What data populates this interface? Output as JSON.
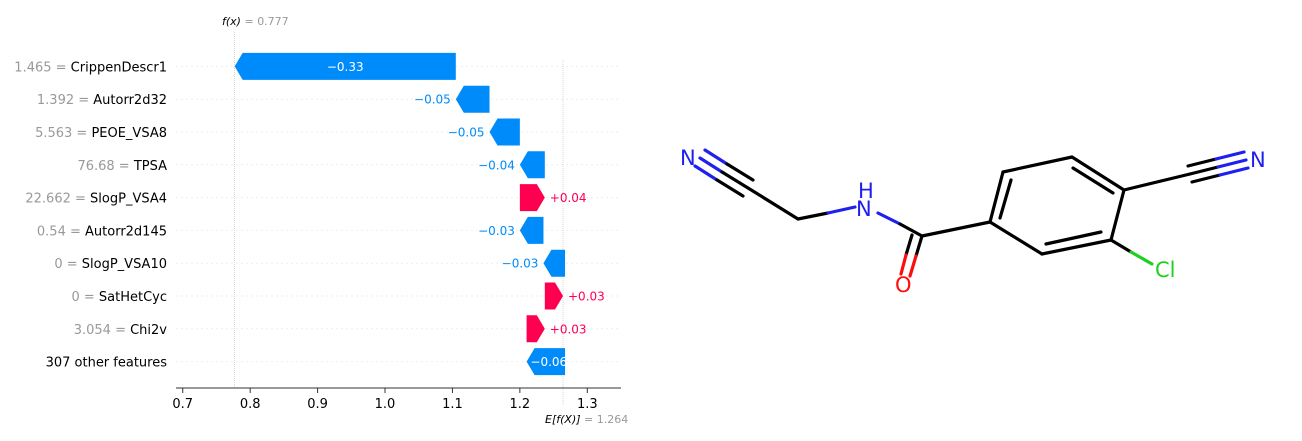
{
  "chart_data": {
    "type": "waterfall",
    "fx_label": "f(x)",
    "fx_value": "0.777",
    "ex_label": "E[f(X)]",
    "ex_value": "1.264",
    "base_value": 1.264,
    "final_value": 0.777,
    "xlim": [
      0.69,
      1.35
    ],
    "xticks": [
      0.7,
      0.8,
      0.9,
      1.0,
      1.1,
      1.2,
      1.3
    ],
    "xtick_labels": [
      "0.7",
      "0.8",
      "0.9",
      "1.0",
      "1.1",
      "1.2",
      "1.3"
    ],
    "colors": {
      "negative": "#008bfb",
      "positive": "#ff0051"
    },
    "features": [
      {
        "value": "1.465",
        "name": "CrippenDescr1",
        "left": 0.777,
        "right": 1.105,
        "shap": -0.33,
        "label": "−0.33"
      },
      {
        "value": "1.392",
        "name": "Autorr2d32",
        "left": 1.105,
        "right": 1.155,
        "shap": -0.05,
        "label": "−0.05"
      },
      {
        "value": "5.563",
        "name": "PEOE_VSA8",
        "left": 1.155,
        "right": 1.2,
        "shap": -0.05,
        "label": "−0.05"
      },
      {
        "value": "76.68",
        "name": "TPSA",
        "left": 1.2,
        "right": 1.237,
        "shap": -0.04,
        "label": "−0.04"
      },
      {
        "value": "22.662",
        "name": "SlogP_VSA4",
        "left": 1.2,
        "right": 1.237,
        "shap": 0.04,
        "label": "+0.04"
      },
      {
        "value": "0.54",
        "name": "Autorr2d145",
        "left": 1.2,
        "right": 1.235,
        "shap": -0.03,
        "label": "−0.03"
      },
      {
        "value": "0",
        "name": "SlogP_VSA10",
        "left": 1.235,
        "right": 1.267,
        "shap": -0.03,
        "label": "−0.03"
      },
      {
        "value": "0",
        "name": "SatHetCyc",
        "left": 1.237,
        "right": 1.264,
        "shap": 0.03,
        "label": "+0.03"
      },
      {
        "value": "3.054",
        "name": "Chi2v",
        "left": 1.21,
        "right": 1.237,
        "shap": 0.03,
        "label": "+0.03"
      },
      {
        "value": "",
        "name": "307 other features",
        "left": 1.21,
        "right": 1.267,
        "shap": -0.06,
        "label": "−0.06"
      }
    ]
  },
  "molecule": {
    "atoms": [
      {
        "symbol": "N",
        "color": "#2020ee"
      },
      {
        "symbol": "H",
        "color": "#2020ee"
      },
      {
        "symbol": "N",
        "color": "#2020ee"
      },
      {
        "symbol": "N",
        "color": "#2020ee"
      },
      {
        "symbol": "O",
        "color": "#ff0d0d"
      },
      {
        "symbol": "Cl",
        "color": "#1fd01f"
      }
    ]
  }
}
